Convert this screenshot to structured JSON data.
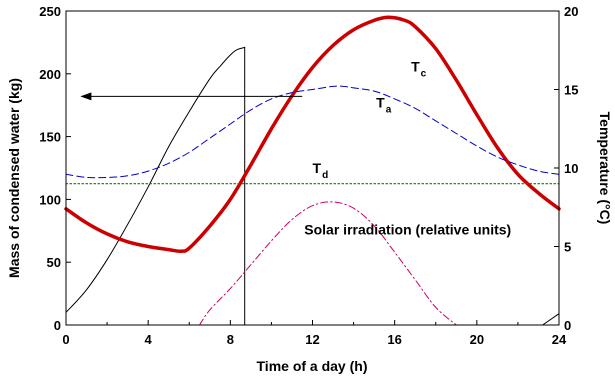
{
  "chart_data": {
    "type": "line",
    "xlabel": "Time of a day (h)",
    "ylabel_left": "Mass of condensed water (kg)",
    "ylabel_right": "Temperature  (°C)",
    "xlim": [
      0,
      24
    ],
    "ylim_left": [
      0,
      250
    ],
    "ylim_right": [
      0,
      20
    ],
    "x_ticks": [
      "0",
      "4",
      "8",
      "12",
      "16",
      "20",
      "24"
    ],
    "y_left_ticks": [
      "0",
      "50",
      "100",
      "150",
      "200",
      "250"
    ],
    "y_right_ticks": [
      "0",
      "5",
      "10",
      "15",
      "20"
    ],
    "grid": false,
    "legend": "none",
    "series": [
      {
        "axis": "left",
        "color": "#000000",
        "style": "solid-thin",
        "x": [
          0,
          1,
          2,
          3,
          4,
          5,
          6,
          7,
          7.5,
          8,
          8.3,
          8.7
        ],
        "y": [
          10,
          28,
          52,
          80,
          110,
          142,
          170,
          196,
          206,
          215,
          219,
          221
        ]
      },
      {
        "axis": "left",
        "color": "#000000",
        "style": "solid-thin",
        "x": [
          8.7,
          8.7
        ],
        "y": [
          221,
          0
        ]
      },
      {
        "axis": "left",
        "color": "#000000",
        "style": "solid-thin",
        "x": [
          23.2,
          24
        ],
        "y": [
          0,
          9
        ]
      },
      {
        "axis": "right",
        "color": "#cc0000",
        "style": "solid-thick",
        "x": [
          0,
          1,
          2,
          3,
          4,
          5,
          5.6,
          6,
          7,
          8,
          9,
          10,
          11,
          12,
          13,
          14,
          15,
          15.7,
          16.5,
          17,
          18,
          19,
          20,
          21,
          22,
          23,
          24
        ],
        "y": [
          7.4,
          6.5,
          5.8,
          5.3,
          5.0,
          4.8,
          4.7,
          4.9,
          6.3,
          8.0,
          10.2,
          12.5,
          14.6,
          16.4,
          17.8,
          18.8,
          19.4,
          19.6,
          19.4,
          19.0,
          17.6,
          15.6,
          13.4,
          11.3,
          9.6,
          8.4,
          7.4
        ]
      },
      {
        "axis": "right",
        "color": "#0000cc",
        "style": "dashed",
        "x": [
          0,
          1,
          2,
          3,
          4,
          5,
          6,
          7,
          8,
          9,
          10,
          11,
          12,
          13,
          13.5,
          14,
          15,
          16,
          17,
          18,
          19,
          20,
          21,
          22,
          23,
          24
        ],
        "y": [
          9.6,
          9.4,
          9.4,
          9.5,
          9.8,
          10.3,
          11.0,
          11.9,
          12.8,
          13.7,
          14.4,
          14.8,
          15.0,
          15.2,
          15.2,
          15.1,
          14.9,
          14.4,
          13.8,
          13.0,
          12.2,
          11.4,
          10.7,
          10.2,
          9.8,
          9.6
        ]
      },
      {
        "axis": "right",
        "color": "#008000",
        "style": "dotted",
        "x": [
          0,
          24
        ],
        "y": [
          9.0,
          9.0
        ]
      },
      {
        "axis": "left",
        "color": "#cc0066",
        "style": "dash-dot",
        "x": [
          6.5,
          7,
          8,
          9,
          10,
          11,
          12,
          13,
          14,
          15,
          16,
          17,
          18,
          19
        ],
        "y": [
          0,
          12,
          29,
          48,
          67,
          84,
          95,
          98,
          93,
          79,
          58,
          36,
          14,
          0
        ]
      }
    ],
    "annotations": {
      "tc": {
        "main": "T",
        "sub": "c",
        "x": 16.8,
        "y_left": 202
      },
      "ta": {
        "main": "T",
        "sub": "a",
        "x": 15.1,
        "y_left": 173
      },
      "td": {
        "main": "T",
        "sub": "d",
        "x": 12.0,
        "y_left": 121
      },
      "solar": {
        "text": "Solar irradiation (relative units)",
        "x": 11.6,
        "y_left": 72
      },
      "arrow": {
        "x_from": 11.5,
        "x_to": 0.7,
        "y_left": 182
      }
    }
  }
}
